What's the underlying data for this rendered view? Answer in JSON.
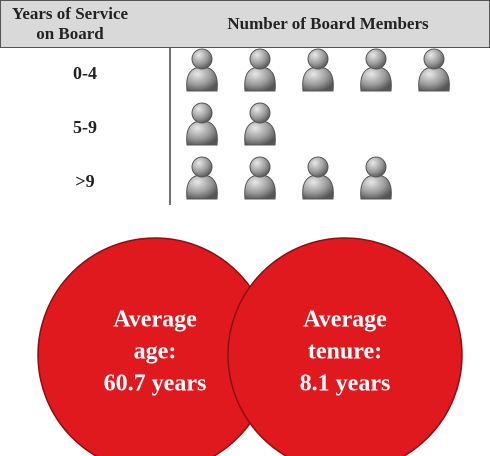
{
  "chart_data": {
    "type": "pictograph",
    "column_headers": {
      "category": [
        "Years of Service",
        "on Board"
      ],
      "values": "Number of Board Members"
    },
    "categories": [
      "0-4",
      "5-9",
      ">9"
    ],
    "values": [
      5,
      2,
      4
    ],
    "color": "#8c8c8c"
  },
  "callouts": [
    {
      "lines": [
        "Average",
        "age:",
        "60.7 years"
      ],
      "color": "#e0191f"
    },
    {
      "lines": [
        "Average",
        "tenure:",
        "8.1 years"
      ],
      "color": "#e0191f"
    }
  ]
}
